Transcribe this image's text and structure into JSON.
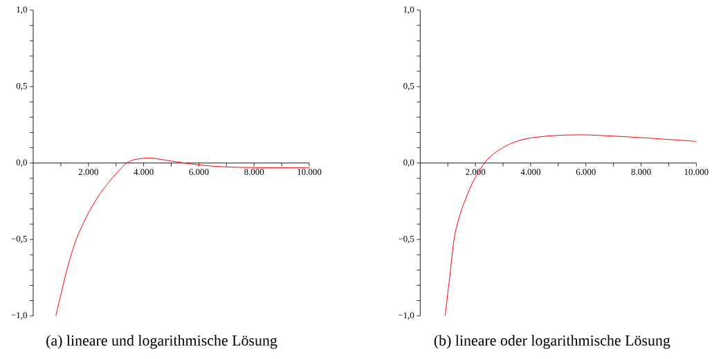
{
  "chart_data": [
    {
      "type": "line",
      "title": "(a) lineare und logarithmische Lösung",
      "xlim": [
        0,
        10000
      ],
      "ylim": [
        -1,
        1
      ],
      "xticks": [
        {
          "value": 1000,
          "label": null
        },
        {
          "value": 2000,
          "label": "2.000"
        },
        {
          "value": 3000,
          "label": null
        },
        {
          "value": 4000,
          "label": "4.000"
        },
        {
          "value": 5000,
          "label": null
        },
        {
          "value": 6000,
          "label": "6.000"
        },
        {
          "value": 7000,
          "label": null
        },
        {
          "value": 8000,
          "label": "8.000"
        },
        {
          "value": 9000,
          "label": null
        },
        {
          "value": 10000,
          "label": "10.000"
        }
      ],
      "yticks": [
        {
          "value": -1,
          "label": "−1,0"
        },
        {
          "value": -0.9,
          "label": null
        },
        {
          "value": -0.8,
          "label": null
        },
        {
          "value": -0.7,
          "label": null
        },
        {
          "value": -0.6,
          "label": null
        },
        {
          "value": -0.5,
          "label": "−0,5"
        },
        {
          "value": -0.4,
          "label": null
        },
        {
          "value": -0.3,
          "label": null
        },
        {
          "value": -0.2,
          "label": null
        },
        {
          "value": -0.1,
          "label": null
        },
        {
          "value": 0,
          "label": "0,0"
        },
        {
          "value": 0.1,
          "label": null
        },
        {
          "value": 0.2,
          "label": null
        },
        {
          "value": 0.3,
          "label": null
        },
        {
          "value": 0.4,
          "label": null
        },
        {
          "value": 0.5,
          "label": "0,5"
        },
        {
          "value": 0.6,
          "label": null
        },
        {
          "value": 0.7,
          "label": null
        },
        {
          "value": 0.8,
          "label": null
        },
        {
          "value": 0.9,
          "label": null
        },
        {
          "value": 1,
          "label": "1,0"
        }
      ],
      "series": [
        {
          "color": "#ff0000",
          "x": [
            820,
            1221,
            1555,
            1973,
            2391,
            2809,
            3144,
            3353,
            3645,
            4231,
            4816,
            5485,
            5987,
            6739,
            7993,
            10000
          ],
          "values": [
            -1.0,
            -0.698,
            -0.502,
            -0.336,
            -0.208,
            -0.11,
            -0.042,
            -0.005,
            0.021,
            0.033,
            0.018,
            0,
            -0.012,
            -0.023,
            -0.03,
            -0.03
          ]
        }
      ]
    },
    {
      "type": "line",
      "title": "(b) lineare oder logarithmische Lösung",
      "xlim": [
        0,
        10000
      ],
      "ylim": [
        -1,
        1
      ],
      "xticks": [
        {
          "value": 1000,
          "label": null
        },
        {
          "value": 2000,
          "label": "2.000"
        },
        {
          "value": 3000,
          "label": null
        },
        {
          "value": 4000,
          "label": "4.000"
        },
        {
          "value": 5000,
          "label": null
        },
        {
          "value": 6000,
          "label": "6.000"
        },
        {
          "value": 7000,
          "label": null
        },
        {
          "value": 8000,
          "label": "8.000"
        },
        {
          "value": 9000,
          "label": null
        },
        {
          "value": 10000,
          "label": "10.000"
        }
      ],
      "yticks": [
        {
          "value": -1,
          "label": "−1,0"
        },
        {
          "value": -0.9,
          "label": null
        },
        {
          "value": -0.8,
          "label": null
        },
        {
          "value": -0.7,
          "label": null
        },
        {
          "value": -0.6,
          "label": null
        },
        {
          "value": -0.5,
          "label": "−0,5"
        },
        {
          "value": -0.4,
          "label": null
        },
        {
          "value": -0.3,
          "label": null
        },
        {
          "value": -0.2,
          "label": null
        },
        {
          "value": -0.1,
          "label": null
        },
        {
          "value": 0,
          "label": "0,0"
        },
        {
          "value": 0.1,
          "label": null
        },
        {
          "value": 0.2,
          "label": null
        },
        {
          "value": 0.3,
          "label": null
        },
        {
          "value": 0.4,
          "label": null
        },
        {
          "value": 0.5,
          "label": "0,5"
        },
        {
          "value": 0.6,
          "label": null
        },
        {
          "value": 0.7,
          "label": null
        },
        {
          "value": 0.8,
          "label": null
        },
        {
          "value": 0.9,
          "label": null
        },
        {
          "value": 1,
          "label": "1,0"
        }
      ],
      "series": [
        {
          "color": "#ff0000",
          "x": [
            902,
            1069,
            1236,
            1445,
            1654,
            1905,
            2322,
            2740,
            3325,
            3994,
            4996,
            5998,
            7000,
            8003,
            9006,
            10000
          ],
          "values": [
            -1.0,
            -0.744,
            -0.487,
            -0.336,
            -0.231,
            -0.125,
            0,
            0.071,
            0.131,
            0.164,
            0.181,
            0.184,
            0.176,
            0.166,
            0.154,
            0.142
          ]
        }
      ]
    }
  ]
}
